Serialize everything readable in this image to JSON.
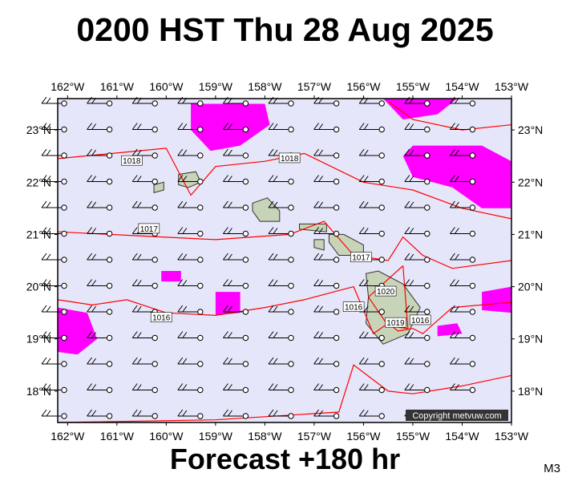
{
  "header": {
    "title": "0200 HST Thu 28 Aug 2025"
  },
  "footer": {
    "forecast": "Forecast +180 hr",
    "model": "M3"
  },
  "map": {
    "lon_range": [
      -162.2,
      -153.0
    ],
    "lat_range": [
      17.4,
      23.6
    ],
    "lon_labels": [
      "162°W",
      "161°W",
      "160°W",
      "159°W",
      "158°W",
      "157°W",
      "156°W",
      "155°W",
      "154°W",
      "153°W"
    ],
    "lat_labels": [
      "23°N",
      "22°N",
      "21°N",
      "20°N",
      "19°N",
      "18°N"
    ],
    "isobars": [
      {
        "label": "1018",
        "points": [
          [
            -162.2,
            22.45
          ],
          [
            -160,
            22.65
          ],
          [
            -159.5,
            21.75
          ],
          [
            -159,
            22.3
          ],
          [
            -158,
            22.4
          ],
          [
            -157.2,
            22.55
          ],
          [
            -156,
            22
          ],
          [
            -155,
            21.85
          ],
          [
            -154,
            21.5
          ],
          [
            -153,
            21.3
          ]
        ]
      },
      {
        "label": "1017",
        "points": [
          [
            -162.2,
            21.05
          ],
          [
            -159,
            20.9
          ],
          [
            -157.5,
            21
          ],
          [
            -156.8,
            21.25
          ],
          [
            -156.2,
            20.6
          ],
          [
            -155.5,
            20.5
          ],
          [
            -155.2,
            20.95
          ],
          [
            -154.8,
            20.6
          ],
          [
            -154.2,
            20.35
          ],
          [
            -153,
            20.5
          ]
        ]
      },
      {
        "label": "1016",
        "points": [
          [
            -162.2,
            19.75
          ],
          [
            -161.5,
            19.65
          ],
          [
            -160.8,
            19.75
          ],
          [
            -160,
            19.5
          ],
          [
            -159,
            19.45
          ],
          [
            -158,
            19.6
          ],
          [
            -157.2,
            19.75
          ],
          [
            -156.2,
            20
          ],
          [
            -155.8,
            19.1
          ],
          [
            -155.5,
            19.3
          ],
          [
            -155.3,
            19.15
          ],
          [
            -155,
            19.2
          ],
          [
            -154.8,
            19.1
          ],
          [
            -154.2,
            19.6
          ],
          [
            -153,
            19.7
          ]
        ]
      },
      {
        "label": "",
        "points": [
          [
            -155.2,
            20.4
          ],
          [
            -155.9,
            19.8
          ],
          [
            -155.5,
            19.25
          ],
          [
            -155.1,
            19.2
          ],
          [
            -155.2,
            20.4
          ]
        ]
      },
      {
        "label": "",
        "points": [
          [
            -162.2,
            17.4
          ],
          [
            -159,
            17.45
          ],
          [
            -156.5,
            17.6
          ],
          [
            -156.2,
            18.5
          ],
          [
            -155.5,
            18.0
          ],
          [
            -155,
            17.95
          ],
          [
            -154,
            18.1
          ],
          [
            -153,
            18.3
          ]
        ]
      },
      {
        "label": "",
        "points": [
          [
            -155.5,
            23.55
          ],
          [
            -155,
            23.2
          ],
          [
            -154,
            23
          ],
          [
            -153,
            23.1
          ]
        ]
      }
    ],
    "isobar_labels": [
      {
        "text": "1018",
        "lon": -160.7,
        "lat": 22.4
      },
      {
        "text": "1018",
        "lon": -157.5,
        "lat": 22.45
      },
      {
        "text": "1017",
        "lon": -160.35,
        "lat": 21.1
      },
      {
        "text": "1017",
        "lon": -156.05,
        "lat": 20.55
      },
      {
        "text": "1016",
        "lon": -160.1,
        "lat": 19.4
      },
      {
        "text": "1016",
        "lon": -156.2,
        "lat": 19.6
      },
      {
        "text": "1020",
        "lon": -155.55,
        "lat": 19.9
      },
      {
        "text": "1019",
        "lon": -155.35,
        "lat": 19.3
      },
      {
        "text": "1016",
        "lon": -154.85,
        "lat": 19.35
      }
    ],
    "rain_areas": [
      {
        "points": [
          [
            -159.5,
            23.5
          ],
          [
            -158.0,
            23.5
          ],
          [
            -157.9,
            23.1
          ],
          [
            -158.5,
            22.7
          ],
          [
            -159.1,
            22.6
          ],
          [
            -159.5,
            23.0
          ]
        ]
      },
      {
        "points": [
          [
            -155.6,
            23.6
          ],
          [
            -154.1,
            23.6
          ],
          [
            -154.5,
            23.3
          ],
          [
            -155.2,
            23.2
          ]
        ]
      },
      {
        "points": [
          [
            -155.0,
            22.7
          ],
          [
            -153.6,
            22.7
          ],
          [
            -153,
            22.4
          ],
          [
            -153,
            21.5
          ],
          [
            -153.6,
            21.5
          ],
          [
            -154.2,
            21.9
          ],
          [
            -155,
            22.1
          ],
          [
            -155.2,
            22.5
          ]
        ]
      },
      {
        "points": [
          [
            -162.2,
            19.6
          ],
          [
            -161.6,
            19.5
          ],
          [
            -161.4,
            19.0
          ],
          [
            -161.8,
            18.7
          ],
          [
            -162.2,
            18.75
          ]
        ]
      },
      {
        "points": [
          [
            -159.0,
            19.9
          ],
          [
            -158.5,
            19.9
          ],
          [
            -158.5,
            19.5
          ],
          [
            -159.0,
            19.45
          ]
        ]
      },
      {
        "points": [
          [
            -160.1,
            20.3
          ],
          [
            -159.7,
            20.3
          ],
          [
            -159.7,
            20.1
          ],
          [
            -160.1,
            20.1
          ]
        ]
      },
      {
        "points": [
          [
            -153.6,
            19.9
          ],
          [
            -153,
            20.0
          ],
          [
            -153,
            19.5
          ],
          [
            -153.6,
            19.55
          ]
        ]
      },
      {
        "points": [
          [
            -154.5,
            19.25
          ],
          [
            -154.1,
            19.3
          ],
          [
            -154.0,
            19.1
          ],
          [
            -154.5,
            19.05
          ]
        ]
      }
    ],
    "islands": [
      {
        "name": "Kauai",
        "points": [
          [
            -159.75,
            22.15
          ],
          [
            -159.4,
            22.2
          ],
          [
            -159.3,
            22.0
          ],
          [
            -159.55,
            21.9
          ],
          [
            -159.75,
            21.95
          ]
        ]
      },
      {
        "name": "Niihau",
        "points": [
          [
            -160.25,
            21.95
          ],
          [
            -160.05,
            22.0
          ],
          [
            -160.05,
            21.85
          ],
          [
            -160.25,
            21.8
          ]
        ]
      },
      {
        "name": "Oahu",
        "points": [
          [
            -158.25,
            21.6
          ],
          [
            -157.95,
            21.7
          ],
          [
            -157.7,
            21.45
          ],
          [
            -157.7,
            21.25
          ],
          [
            -158.1,
            21.25
          ],
          [
            -158.25,
            21.45
          ]
        ]
      },
      {
        "name": "Molokai",
        "points": [
          [
            -157.3,
            21.2
          ],
          [
            -156.75,
            21.2
          ],
          [
            -156.75,
            21.05
          ],
          [
            -157.3,
            21.1
          ]
        ]
      },
      {
        "name": "Maui",
        "points": [
          [
            -156.7,
            21.0
          ],
          [
            -156.4,
            21.0
          ],
          [
            -156.0,
            20.8
          ],
          [
            -156.0,
            20.6
          ],
          [
            -156.5,
            20.6
          ],
          [
            -156.7,
            20.85
          ]
        ]
      },
      {
        "name": "Lanai",
        "points": [
          [
            -157.0,
            20.9
          ],
          [
            -156.8,
            20.9
          ],
          [
            -156.8,
            20.7
          ],
          [
            -157.0,
            20.75
          ]
        ]
      },
      {
        "name": "Hawaii",
        "points": [
          [
            -155.95,
            20.25
          ],
          [
            -155.7,
            20.3
          ],
          [
            -155.2,
            20.05
          ],
          [
            -154.85,
            19.6
          ],
          [
            -155.1,
            19.1
          ],
          [
            -155.6,
            18.9
          ],
          [
            -155.95,
            19.3
          ],
          [
            -155.9,
            19.8
          ]
        ]
      }
    ],
    "copyright": "Copyright metvuw.com"
  }
}
